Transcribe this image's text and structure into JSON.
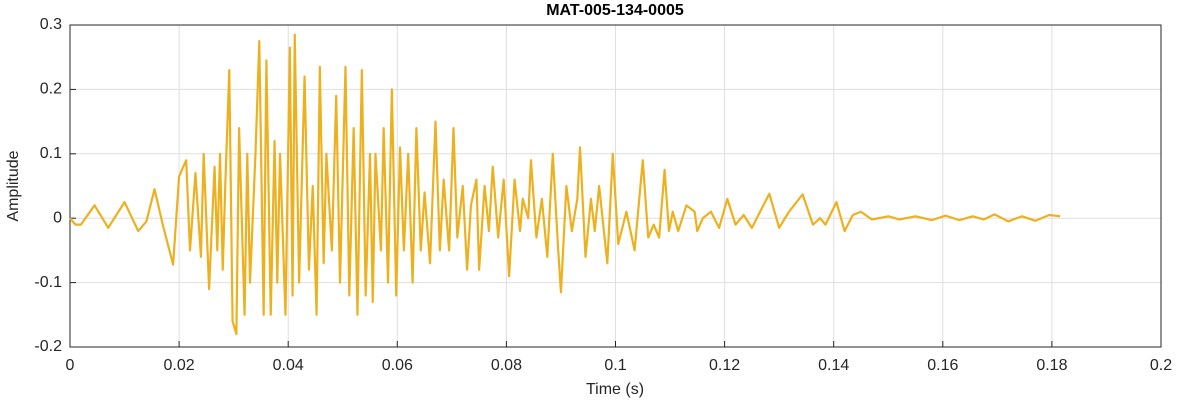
{
  "chart_data": {
    "type": "line",
    "title": "MAT-005-134-0005",
    "x_label": "Time (s)",
    "y_label": "Amplitude",
    "color": "#EDB120",
    "xlim": [
      0,
      0.2
    ],
    "ylim": [
      -0.2,
      0.3
    ],
    "xticks": [
      0,
      0.02,
      0.04,
      0.06,
      0.08,
      0.1,
      0.12,
      0.14,
      0.16,
      0.18,
      0.2
    ],
    "yticks": [
      -0.2,
      -0.1,
      0,
      0.1,
      0.2,
      0.3
    ],
    "grid": true,
    "x": [
      0,
      0.001,
      0.002,
      0.0045,
      0.007,
      0.01,
      0.0125,
      0.014,
      0.0155,
      0.017,
      0.0189,
      0.02,
      0.0213,
      0.022,
      0.023,
      0.024,
      0.0245,
      0.0255,
      0.0265,
      0.027,
      0.0275,
      0.028,
      0.0285,
      0.0292,
      0.0298,
      0.0305,
      0.031,
      0.032,
      0.0325,
      0.033,
      0.034,
      0.0347,
      0.0355,
      0.036,
      0.0368,
      0.0375,
      0.038,
      0.0385,
      0.0395,
      0.0403,
      0.0408,
      0.0412,
      0.042,
      0.043,
      0.0438,
      0.0445,
      0.0452,
      0.0458,
      0.0465,
      0.047,
      0.048,
      0.0488,
      0.0495,
      0.0505,
      0.0512,
      0.052,
      0.0527,
      0.0535,
      0.0542,
      0.055,
      0.0555,
      0.056,
      0.057,
      0.0575,
      0.0583,
      0.059,
      0.0598,
      0.0605,
      0.0612,
      0.062,
      0.0628,
      0.0635,
      0.0643,
      0.065,
      0.066,
      0.067,
      0.0678,
      0.0685,
      0.0695,
      0.0703,
      0.071,
      0.072,
      0.0728,
      0.0735,
      0.0745,
      0.075,
      0.076,
      0.0768,
      0.0775,
      0.0785,
      0.0795,
      0.0805,
      0.0815,
      0.0825,
      0.083,
      0.084,
      0.0845,
      0.0855,
      0.0865,
      0.0875,
      0.0885,
      0.0895,
      0.09,
      0.091,
      0.092,
      0.093,
      0.0935,
      0.0945,
      0.0955,
      0.0962,
      0.097,
      0.0985,
      0.0995,
      0.1005,
      0.102,
      0.1035,
      0.105,
      0.106,
      0.107,
      0.108,
      0.109,
      0.1098,
      0.1105,
      0.1115,
      0.113,
      0.1145,
      0.115,
      0.116,
      0.1175,
      0.119,
      0.1205,
      0.122,
      0.1235,
      0.125,
      0.1265,
      0.1282,
      0.13,
      0.1318,
      0.1343,
      0.1362,
      0.1375,
      0.1385,
      0.1405,
      0.142,
      0.1435,
      0.145,
      0.147,
      0.15,
      0.152,
      0.155,
      0.158,
      0.1605,
      0.163,
      0.1655,
      0.1675,
      0.1695,
      0.172,
      0.1745,
      0.177,
      0.1795,
      0.1815
    ],
    "values": [
      0,
      -0.01,
      -0.01,
      0.02,
      -0.015,
      0.025,
      -0.02,
      -0.005,
      0.045,
      -0.01,
      -0.072,
      0.065,
      0.09,
      -0.05,
      0.07,
      -0.06,
      0.1,
      -0.11,
      0.08,
      -0.05,
      0.1,
      -0.08,
      0.06,
      0.23,
      -0.16,
      -0.18,
      0.14,
      -0.15,
      0.1,
      -0.1,
      0.1,
      0.275,
      -0.15,
      0.245,
      -0.15,
      0.12,
      -0.1,
      0.1,
      -0.15,
      0.265,
      -0.12,
      0.285,
      -0.1,
      0.22,
      -0.08,
      0.05,
      -0.15,
      0.235,
      -0.07,
      0.1,
      -0.05,
      0.19,
      -0.1,
      0.235,
      -0.12,
      0.14,
      -0.15,
      0.23,
      -0.12,
      0.1,
      -0.13,
      0.1,
      -0.05,
      0.14,
      -0.1,
      0.2,
      -0.12,
      0.11,
      -0.05,
      0.1,
      -0.1,
      0.14,
      -0.05,
      0.04,
      -0.07,
      0.15,
      -0.05,
      0.06,
      -0.05,
      0.14,
      -0.03,
      0.05,
      -0.08,
      0.02,
      0.06,
      -0.08,
      0.05,
      -0.02,
      0.08,
      -0.03,
      0.06,
      -0.09,
      0.06,
      -0.02,
      0.03,
      0,
      0.09,
      -0.03,
      0.03,
      -0.06,
      0.1,
      -0.05,
      -0.115,
      0.05,
      -0.02,
      0.03,
      0.11,
      -0.06,
      0.03,
      -0.02,
      0.05,
      -0.07,
      0.1,
      -0.04,
      0.01,
      -0.05,
      0.09,
      -0.03,
      -0.01,
      -0.03,
      0.075,
      -0.02,
      0.01,
      -0.02,
      0.02,
      0.01,
      -0.02,
      0,
      0.01,
      -0.015,
      0.03,
      -0.01,
      0.005,
      -0.015,
      0.01,
      0.038,
      -0.015,
      0.01,
      0.037,
      -0.01,
      0,
      -0.01,
      0.025,
      -0.02,
      0.005,
      0.01,
      -0.002,
      0.003,
      -0.002,
      0.003,
      -0.003,
      0.004,
      -0.003,
      0.003,
      -0.002,
      0.006,
      -0.005,
      0.003,
      -0.004,
      0.005,
      0.003
    ]
  }
}
